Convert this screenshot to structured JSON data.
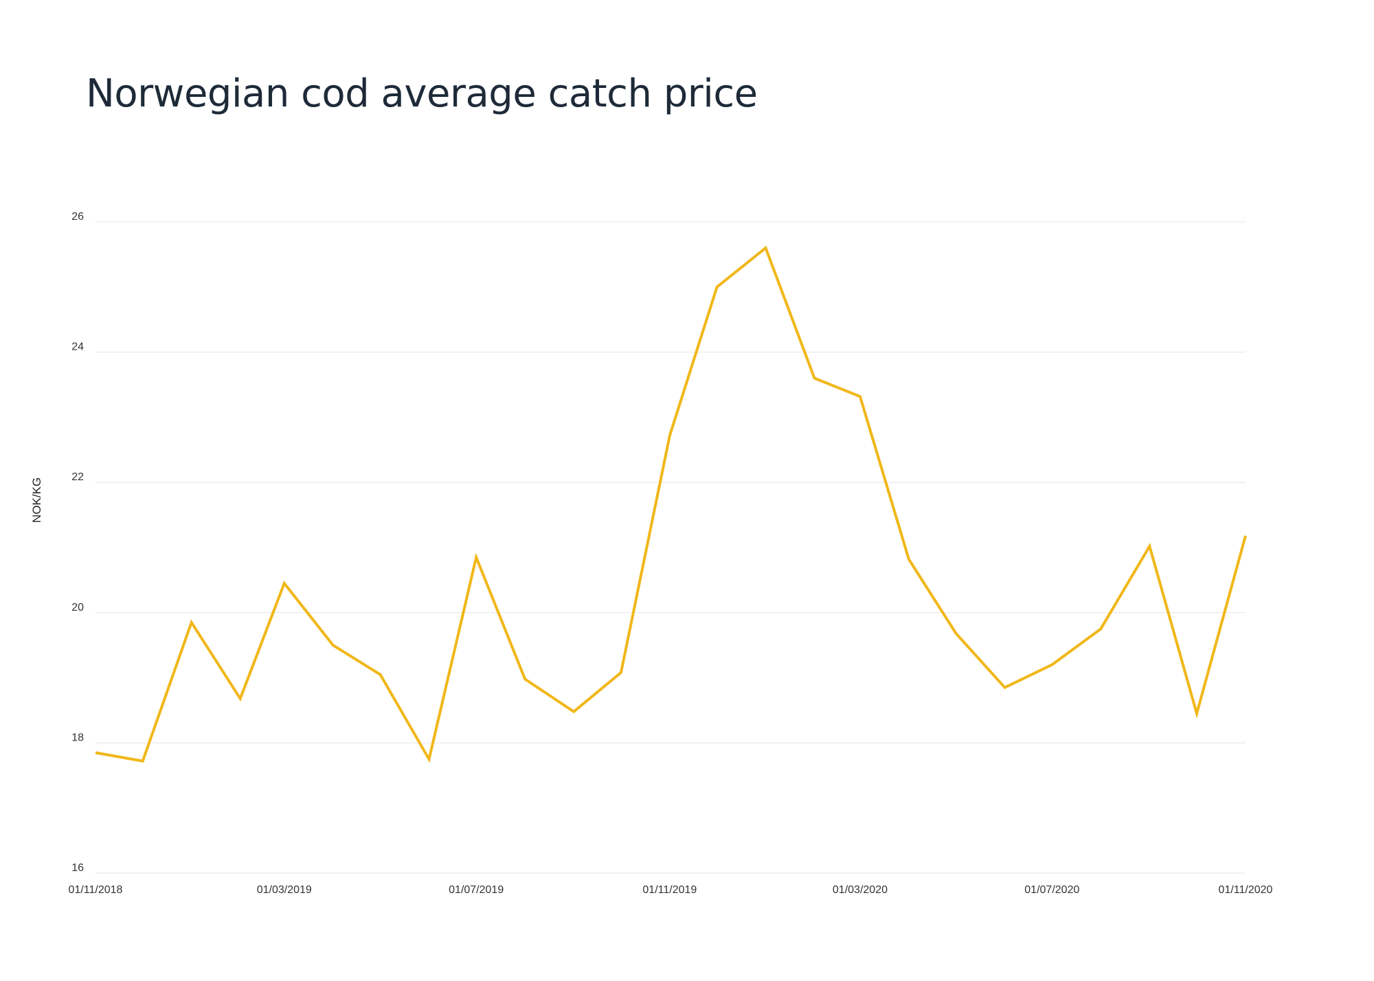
{
  "title": "Norwegian cod average catch price",
  "colors": {
    "line": "#F1B719",
    "grid": "#e6e6e6",
    "title": "#1e2a38"
  },
  "chart_data": {
    "type": "line",
    "title": "Norwegian cod average catch price",
    "xlabel": "",
    "ylabel": "NOK/KG",
    "ylim": [
      16,
      26
    ],
    "yticks": [
      16,
      18,
      20,
      22,
      24,
      26
    ],
    "xlim": [
      "2018-11-01",
      "2020-11-01"
    ],
    "xticks": [
      "2018-11-01",
      "2019-03-01",
      "2019-07-01",
      "2019-11-01",
      "2020-03-01",
      "2020-07-01",
      "2020-11-01"
    ],
    "xtick_labels": [
      "01/11/2018",
      "01/03/2019",
      "01/07/2019",
      "01/11/2019",
      "01/03/2020",
      "01/07/2020",
      "01/11/2020"
    ],
    "grid": "horizontal",
    "legend": "none",
    "series": [
      {
        "x": [
          "2018-11-01",
          "2018-12-01",
          "2019-01-01",
          "2019-02-01",
          "2019-03-01",
          "2019-04-01",
          "2019-05-01",
          "2019-06-01",
          "2019-07-01",
          "2019-08-01",
          "2019-09-01",
          "2019-10-01",
          "2019-11-01",
          "2019-12-01",
          "2020-01-01",
          "2020-02-01",
          "2020-03-01",
          "2020-04-01",
          "2020-05-01",
          "2020-06-01",
          "2020-07-01",
          "2020-08-01",
          "2020-09-01",
          "2020-10-01",
          "2020-11-01"
        ],
        "values": [
          17.85,
          17.72,
          19.85,
          18.68,
          20.45,
          19.5,
          19.05,
          17.75,
          20.85,
          18.98,
          18.48,
          19.08,
          22.72,
          25.0,
          25.6,
          23.6,
          23.32,
          20.82,
          19.68,
          18.85,
          19.2,
          19.75,
          21.02,
          18.45,
          21.18
        ]
      }
    ]
  }
}
